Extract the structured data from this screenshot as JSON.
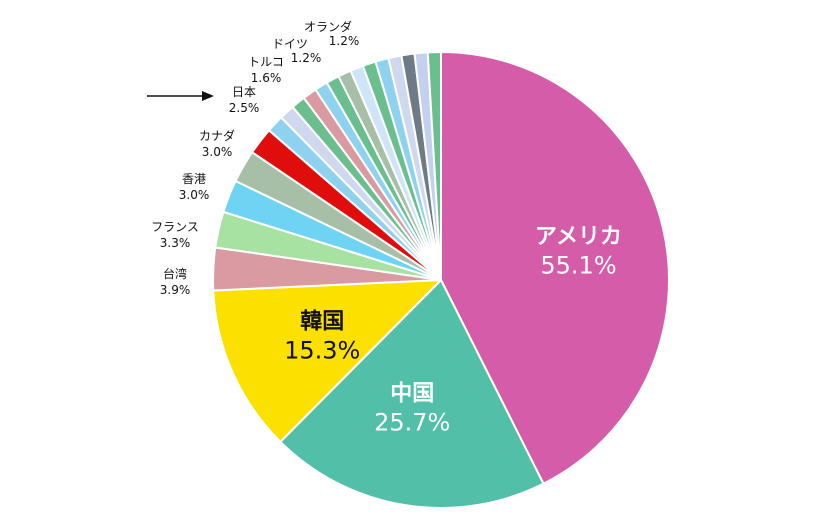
{
  "chart_data": {
    "type": "pie",
    "title": "",
    "slices": [
      {
        "label": "アメリカ",
        "value": 55.1,
        "value_text": "55.1%",
        "color": "#d45ca8",
        "label_position": "inside"
      },
      {
        "label": "中国",
        "value": 25.7,
        "value_text": "25.7%",
        "color": "#52bfa9",
        "label_position": "inside"
      },
      {
        "label": "韓国",
        "value": 15.3,
        "value_text": "15.3%",
        "color": "#fce100",
        "label_position": "inside"
      },
      {
        "label": "台湾",
        "value": 3.9,
        "value_text": "3.9%",
        "color": "#d99aa2",
        "label_position": "outside"
      },
      {
        "label": "フランス",
        "value": 3.3,
        "value_text": "3.3%",
        "color": "#a8e2a3",
        "label_position": "outside"
      },
      {
        "label": "香港",
        "value": 3.0,
        "value_text": "3.0%",
        "color": "#6fd3f4",
        "label_position": "outside"
      },
      {
        "label": "カナダ",
        "value": 3.0,
        "value_text": "3.0%",
        "color": "#a7bfa6",
        "label_position": "outside"
      },
      {
        "label": "日本",
        "value": 2.5,
        "value_text": "2.5%",
        "color": "#e00d0d",
        "label_position": "outside",
        "highlight_arrow": true
      },
      {
        "label": "トルコ",
        "value": 1.6,
        "value_text": "1.6%",
        "color": "#8fd2ef",
        "label_position": "outside"
      },
      {
        "label": "",
        "value": 1.4,
        "value_text": "",
        "color": "#cfd8ef"
      },
      {
        "label": "",
        "value": 1.3,
        "value_text": "",
        "color": "#6bbf8f"
      },
      {
        "label": "",
        "value": 1.3,
        "value_text": "",
        "color": "#d99aa2"
      },
      {
        "label": "",
        "value": 1.2,
        "value_text": "",
        "color": "#8fd2ef"
      },
      {
        "label": "",
        "value": 1.2,
        "value_text": "",
        "color": "#6bbf8f"
      },
      {
        "label": "",
        "value": 1.2,
        "value_text": "",
        "color": "#a7bfa6"
      },
      {
        "label": "",
        "value": 1.2,
        "value_text": "",
        "color": "#cfe5f7"
      },
      {
        "label": "",
        "value": 1.2,
        "value_text": "",
        "color": "#6bbf8f"
      },
      {
        "label": "",
        "value": 1.2,
        "value_text": "",
        "color": "#8fd2ef"
      },
      {
        "label": "",
        "value": 1.2,
        "value_text": "",
        "color": "#cfd8ef"
      },
      {
        "label": "ドイツ",
        "value": 1.2,
        "value_text": "1.2%",
        "color": "#6e7b86",
        "label_position": "outside"
      },
      {
        "label": "オランダ",
        "value": 1.2,
        "value_text": "1.2%",
        "color": "#c4d0f0",
        "label_position": "outside"
      },
      {
        "label": "",
        "value": 1.2,
        "value_text": "",
        "color": "#6bbf8f"
      }
    ]
  }
}
